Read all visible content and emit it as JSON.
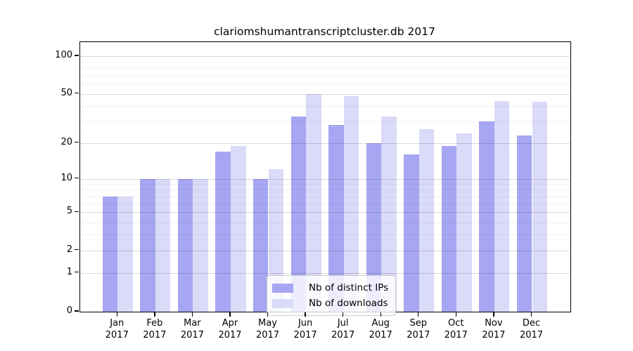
{
  "title": "clariomshumantranscriptcluster.db 2017",
  "colors": {
    "ips_bar": "#a6a6f2",
    "downloads_bar": "#dadaf9",
    "axis": "#000000",
    "grid_major": "rgba(0,0,0,0.14)",
    "grid_minor": "rgba(0,0,0,0.05)",
    "legend_border": "#cccccc"
  },
  "y_axis": {
    "tick_values": [
      100,
      50,
      20,
      10,
      5,
      2,
      1,
      0
    ],
    "tick_labels": [
      "100",
      "50",
      "20",
      "10",
      "5",
      "2",
      "1",
      "0"
    ]
  },
  "x_axis": {
    "months": [
      "Jan",
      "Feb",
      "Mar",
      "Apr",
      "May",
      "Jun",
      "Jul",
      "Aug",
      "Sep",
      "Oct",
      "Nov",
      "Dec"
    ],
    "year": "2017"
  },
  "legend": {
    "items": [
      {
        "label": "Nb of distinct IPs",
        "color_key": "ips_bar"
      },
      {
        "label": "Nb of downloads",
        "color_key": "downloads_bar"
      }
    ]
  },
  "chart_data": {
    "type": "bar",
    "title": "clariomshumantranscriptcluster.db 2017",
    "categories": [
      "Jan 2017",
      "Feb 2017",
      "Mar 2017",
      "Apr 2017",
      "May 2017",
      "Jun 2017",
      "Jul 2017",
      "Aug 2017",
      "Sep 2017",
      "Oct 2017",
      "Nov 2017",
      "Dec 2017"
    ],
    "series": [
      {
        "name": "Nb of distinct IPs",
        "values": [
          7,
          10,
          10,
          17,
          10,
          33,
          28,
          20,
          16,
          19,
          30,
          23
        ]
      },
      {
        "name": "Nb of downloads",
        "values": [
          7,
          10,
          10,
          19,
          12,
          50,
          48,
          33,
          26,
          24,
          44,
          43
        ]
      }
    ],
    "xlabel": "",
    "ylabel": "",
    "y_scale": "log-like (ticks 0,1,2,5,10,20,50,100)",
    "y_ticks": [
      0,
      1,
      2,
      5,
      10,
      20,
      50,
      100
    ],
    "y_minor_gridlines": [
      3,
      4,
      6,
      7,
      8,
      9,
      30,
      40,
      60,
      70,
      80,
      90
    ],
    "ylim": [
      0,
      135
    ],
    "grid": true,
    "legend_position": "inside bottom-center"
  }
}
